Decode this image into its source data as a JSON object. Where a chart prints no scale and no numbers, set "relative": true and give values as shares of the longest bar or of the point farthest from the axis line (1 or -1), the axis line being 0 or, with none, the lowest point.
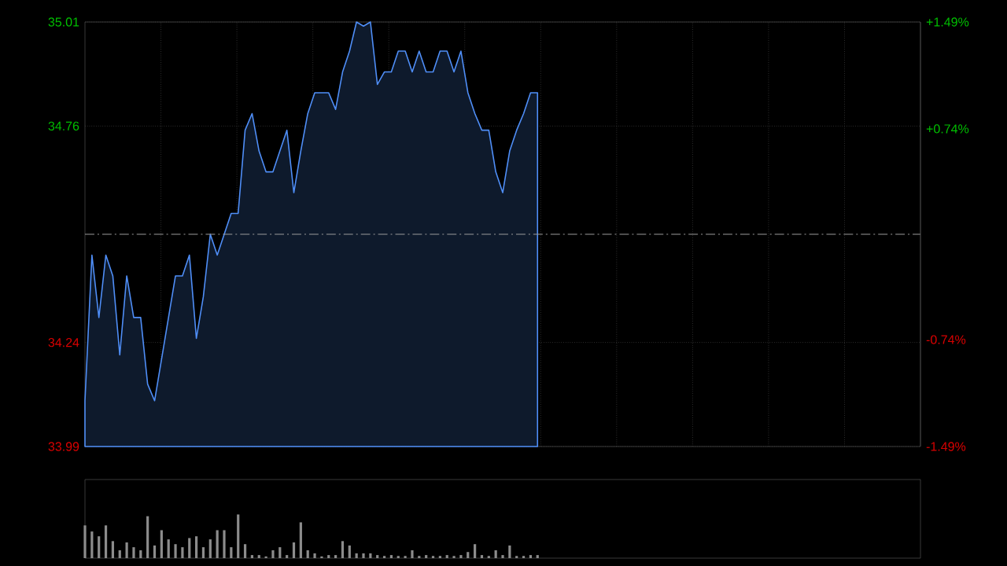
{
  "chart_data": [
    {
      "type": "area",
      "categories": [
        null,
        null,
        null,
        null,
        null,
        null,
        null,
        null,
        null,
        null,
        null,
        null,
        null,
        null,
        null,
        null,
        null,
        null,
        null,
        null,
        null,
        null,
        null,
        null,
        null,
        null,
        null,
        null,
        null,
        null,
        null,
        null,
        null,
        null,
        null,
        null,
        null,
        null,
        null,
        null,
        null,
        null,
        null,
        null,
        null,
        null,
        null,
        null,
        null,
        null,
        null,
        null,
        null,
        null,
        null,
        null,
        null,
        null,
        null,
        null,
        null,
        null,
        null,
        null,
        null,
        null,
        null,
        null,
        null,
        null,
        null,
        null,
        null,
        null,
        null,
        null,
        null,
        null,
        null,
        null,
        null,
        null,
        null,
        null,
        null,
        null,
        null,
        null,
        null,
        null,
        null,
        null,
        null,
        null,
        null,
        null,
        null,
        null,
        null,
        null,
        null,
        null,
        null,
        null,
        null,
        null,
        null,
        null,
        null,
        null,
        null,
        null,
        null,
        null,
        null,
        null,
        null,
        null,
        null,
        null,
        null
      ],
      "values": [
        34.1,
        34.45,
        34.3,
        34.45,
        34.4,
        34.21,
        34.4,
        34.3,
        34.3,
        34.14,
        34.1,
        34.2,
        34.3,
        34.4,
        34.4,
        34.45,
        34.25,
        34.35,
        34.5,
        34.45,
        34.5,
        34.55,
        34.55,
        34.75,
        34.79,
        34.7,
        34.65,
        34.65,
        34.7,
        34.75,
        34.6,
        34.7,
        34.79,
        34.84,
        34.84,
        34.84,
        34.8,
        34.89,
        34.94,
        35.01,
        35.0,
        35.01,
        34.86,
        34.89,
        34.89,
        34.94,
        34.94,
        34.89,
        34.94,
        34.89,
        34.89,
        34.94,
        34.94,
        34.89,
        34.94,
        34.84,
        34.79,
        34.75,
        34.75,
        34.65,
        34.6,
        34.7,
        34.75,
        34.79,
        34.84,
        34.84,
        null,
        null,
        null,
        null,
        null,
        null,
        null,
        null,
        null,
        null,
        null,
        null,
        null,
        null,
        null,
        null,
        null,
        null,
        null,
        null,
        null,
        null,
        null,
        null,
        null,
        null,
        null,
        null,
        null,
        null,
        null,
        null,
        null,
        null,
        null,
        null,
        null,
        null,
        null,
        null,
        null,
        null,
        null,
        null,
        null,
        null,
        null,
        null,
        null,
        null,
        null,
        null,
        null,
        null,
        null
      ],
      "color": "#4f8ef7",
      "ylim": [
        33.99,
        35.01
      ],
      "yticks": [
        33.99,
        34.24,
        34.76,
        35.01
      ],
      "y2lim": [
        -1.49,
        1.49
      ],
      "y2ticks": [
        {
          "value": -1.49,
          "label": "-1.49%"
        },
        {
          "value": -0.74,
          "label": "-0.74%"
        },
        {
          "value": 0.74,
          "label": "+0.74%"
        },
        {
          "value": 1.49,
          "label": "+1.49%"
        }
      ],
      "ref_lines": [
        {
          "axis": "y",
          "value": 34.5,
          "color": "#999999",
          "line_style": "dashed"
        }
      ],
      "grid": true
    },
    {
      "type": "bar",
      "relative": true,
      "categories": [
        null,
        null,
        null,
        null,
        null,
        null,
        null,
        null,
        null,
        null,
        null,
        null,
        null,
        null,
        null,
        null,
        null,
        null,
        null,
        null,
        null,
        null,
        null,
        null,
        null,
        null,
        null,
        null,
        null,
        null,
        null,
        null,
        null,
        null,
        null,
        null,
        null,
        null,
        null,
        null,
        null,
        null,
        null,
        null,
        null,
        null,
        null,
        null,
        null,
        null,
        null,
        null,
        null,
        null,
        null,
        null,
        null,
        null,
        null,
        null,
        null,
        null,
        null,
        null,
        null,
        null,
        null,
        null,
        null,
        null,
        null,
        null,
        null,
        null,
        null,
        null,
        null,
        null,
        null,
        null,
        null,
        null,
        null,
        null,
        null,
        null,
        null,
        null,
        null,
        null,
        null,
        null,
        null,
        null,
        null,
        null,
        null,
        null,
        null,
        null,
        null,
        null,
        null,
        null,
        null,
        null,
        null,
        null,
        null,
        null,
        null,
        null,
        null,
        null,
        null,
        null,
        null,
        null,
        null,
        null,
        null
      ],
      "values": [
        0.75,
        0.61,
        0.5,
        0.75,
        0.39,
        0.18,
        0.36,
        0.25,
        0.18,
        0.96,
        0.29,
        0.64,
        0.43,
        0.32,
        0.25,
        0.46,
        0.5,
        0.25,
        0.43,
        0.64,
        0.64,
        0.25,
        1,
        0.32,
        0.07,
        0.07,
        0.04,
        0.18,
        0.25,
        0.07,
        0.36,
        0.82,
        0.18,
        0.11,
        0.04,
        0.07,
        0.07,
        0.39,
        0.29,
        0.11,
        0.11,
        0.11,
        0.07,
        0.05,
        0.07,
        0.05,
        0.05,
        0.18,
        0.05,
        0.07,
        0.05,
        0.05,
        0.07,
        0.05,
        0.07,
        0.14,
        0.32,
        0.07,
        0.05,
        0.18,
        0.07,
        0.29,
        0.05,
        0.05,
        0.07,
        0.07,
        null,
        null,
        null,
        null,
        null,
        null,
        null,
        null,
        null,
        null,
        null,
        null,
        null,
        null,
        null,
        null,
        null,
        null,
        null,
        null,
        null,
        null,
        null,
        null,
        null,
        null,
        null,
        null,
        null,
        null,
        null,
        null,
        null,
        null,
        null,
        null,
        null,
        null,
        null,
        null,
        null,
        null,
        null,
        null,
        null,
        null,
        null,
        null,
        null,
        null,
        null,
        null,
        null,
        null,
        null
      ],
      "color": "#8c8c8c"
    }
  ]
}
